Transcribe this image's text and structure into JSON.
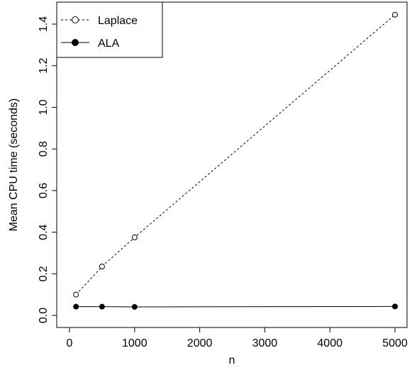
{
  "chart_data": {
    "type": "line",
    "xlabel": "n",
    "ylabel": "Mean CPU time (seconds)",
    "xlim": [
      0,
      5000
    ],
    "ylim": [
      0,
      1.4
    ],
    "xticks": [
      0,
      1000,
      2000,
      3000,
      4000,
      5000
    ],
    "yticks": [
      0.0,
      0.2,
      0.4,
      0.6,
      0.8,
      1.0,
      1.2,
      1.4
    ],
    "xtick_labels": [
      "0",
      "1000",
      "2000",
      "3000",
      "4000",
      "5000"
    ],
    "ytick_labels": [
      "0.0",
      "0.2",
      "0.4",
      "0.6",
      "0.8",
      "1.0",
      "1.2",
      "1.4"
    ],
    "grid": false,
    "legend_position": "top-left",
    "series": [
      {
        "name": "Laplace",
        "x": [
          100,
          500,
          1000,
          5000
        ],
        "y": [
          0.1,
          0.235,
          0.375,
          1.445
        ],
        "line_style": "dashed",
        "marker": "open-circle",
        "color": "#000000"
      },
      {
        "name": "ALA",
        "x": [
          100,
          500,
          1000,
          5000
        ],
        "y": [
          0.042,
          0.042,
          0.041,
          0.043
        ],
        "line_style": "solid",
        "marker": "filled-circle",
        "color": "#000000"
      }
    ]
  }
}
